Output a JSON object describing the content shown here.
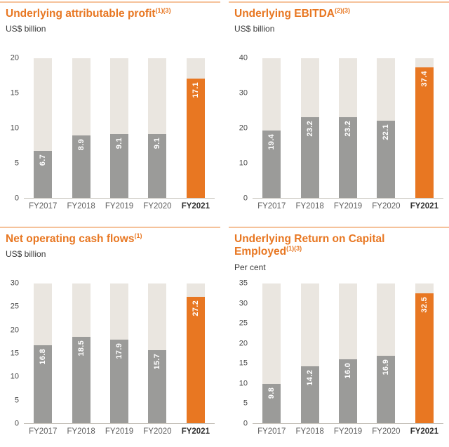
{
  "colors": {
    "accent_orange": "#E87722",
    "bar_gray": "#9B9B99",
    "track_beige": "#EAE6E0"
  },
  "chart_data": [
    {
      "type": "bar",
      "title": "Underlying attributable profit",
      "title_refs": "(1)(3)",
      "unit": "US$ billion",
      "categories": [
        "FY2017",
        "FY2018",
        "FY2019",
        "FY2020",
        "FY2021"
      ],
      "values": [
        6.7,
        8.9,
        9.1,
        9.1,
        17.1
      ],
      "labels": [
        "6.7",
        "8.9",
        "9.1",
        "9.1",
        "17.1"
      ],
      "highlight_index": 4,
      "ylim": [
        0,
        20
      ],
      "yticks": [
        0,
        5,
        10,
        15,
        20
      ],
      "grid": false,
      "legend": "none"
    },
    {
      "type": "bar",
      "title": "Underlying EBITDA",
      "title_refs": "(2)(3)",
      "unit": "US$ billion",
      "categories": [
        "FY2017",
        "FY2018",
        "FY2019",
        "FY2020",
        "FY2021"
      ],
      "values": [
        19.4,
        23.2,
        23.2,
        22.1,
        37.4
      ],
      "labels": [
        "19.4",
        "23.2",
        "23.2",
        "22.1",
        "37.4"
      ],
      "highlight_index": 4,
      "ylim": [
        0,
        40
      ],
      "yticks": [
        0,
        10,
        20,
        30,
        40
      ],
      "grid": false,
      "legend": "none"
    },
    {
      "type": "bar",
      "title": "Net operating cash flows",
      "title_refs": "(1)",
      "unit": "US$ billion",
      "categories": [
        "FY2017",
        "FY2018",
        "FY2019",
        "FY2020",
        "FY2021"
      ],
      "values": [
        16.8,
        18.5,
        17.9,
        15.7,
        27.2
      ],
      "labels": [
        "16.8",
        "18.5",
        "17.9",
        "15.7",
        "27.2"
      ],
      "highlight_index": 4,
      "ylim": [
        0,
        30
      ],
      "yticks": [
        0,
        5,
        10,
        15,
        20,
        25,
        30
      ],
      "grid": false,
      "legend": "none"
    },
    {
      "type": "bar",
      "title": "Underlying Return on Capital Employed",
      "title_refs": "(1)(3)",
      "unit": "Per cent",
      "categories": [
        "FY2017",
        "FY2018",
        "FY2019",
        "FY2020",
        "FY2021"
      ],
      "values": [
        9.8,
        14.2,
        16.0,
        16.9,
        32.5
      ],
      "labels": [
        "9.8",
        "14.2",
        "16.0",
        "16.9",
        "32.5"
      ],
      "highlight_index": 4,
      "ylim": [
        0,
        35
      ],
      "yticks": [
        0,
        5,
        10,
        15,
        20,
        25,
        30,
        35
      ],
      "grid": false,
      "legend": "none"
    }
  ]
}
